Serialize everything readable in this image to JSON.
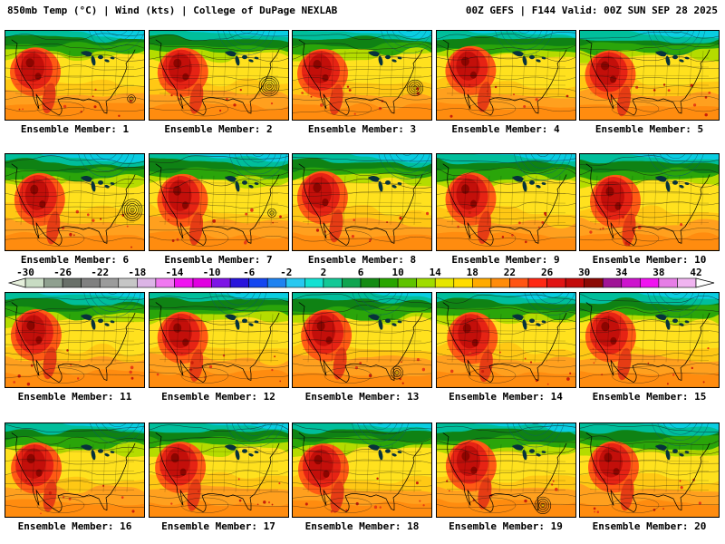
{
  "header": {
    "left": "850mb Temp (°C) | Wind (kts) | College of DuPage NEXLAB",
    "right": "00Z GEFS | F144 Valid: 00Z SUN SEP 28 2025"
  },
  "panels": [
    {
      "label": "Ensemble Member: 1"
    },
    {
      "label": "Ensemble Member: 2"
    },
    {
      "label": "Ensemble Member: 3"
    },
    {
      "label": "Ensemble Member: 4"
    },
    {
      "label": "Ensemble Member: 5"
    },
    {
      "label": "Ensemble Member: 6"
    },
    {
      "label": "Ensemble Member: 7"
    },
    {
      "label": "Ensemble Member: 8"
    },
    {
      "label": "Ensemble Member: 9"
    },
    {
      "label": "Ensemble Member: 10"
    },
    {
      "label": "Ensemble Member: 11"
    },
    {
      "label": "Ensemble Member: 12"
    },
    {
      "label": "Ensemble Member: 13"
    },
    {
      "label": "Ensemble Member: 14"
    },
    {
      "label": "Ensemble Member: 15"
    },
    {
      "label": "Ensemble Member: 16"
    },
    {
      "label": "Ensemble Member: 17"
    },
    {
      "label": "Ensemble Member: 18"
    },
    {
      "label": "Ensemble Member: 19"
    },
    {
      "label": "Ensemble Member: 20"
    }
  ],
  "colorbar": {
    "ticks": [
      "-30",
      "-26",
      "-22",
      "-18",
      "-14",
      "-10",
      "-6",
      "-2",
      "2",
      "6",
      "10",
      "14",
      "18",
      "22",
      "26",
      "30",
      "34",
      "38",
      "42"
    ],
    "segment_step_degC": 2,
    "range_degC": [
      -30,
      42
    ],
    "segment_colors": [
      "#C8DCC3",
      "#8FA08F",
      "#697069",
      "#808080",
      "#9B9B9B",
      "#C6C6C6",
      "#DCB4E6",
      "#F078F0",
      "#F014F0",
      "#E100E1",
      "#7D14E6",
      "#2814DC",
      "#1446F0",
      "#1E82F0",
      "#28C8F0",
      "#14E1D2",
      "#14C896",
      "#0FA550",
      "#148C14",
      "#28A500",
      "#5FC300",
      "#A0DC00",
      "#E6E600",
      "#FFDC00",
      "#FFAA00",
      "#FF8C0A",
      "#FF5514",
      "#FF2814",
      "#E11414",
      "#C30A0A",
      "#8C0A05",
      "#A01496",
      "#CD14CD",
      "#F014F0",
      "#E67DE6",
      "#F0B4F0"
    ],
    "left_arrow_color": "#E6F0DC",
    "right_arrow_color": "#FFFFFF"
  },
  "chart_data": {
    "type": "heatmap",
    "title": "850mb Temp (°C) | Wind (kts)",
    "source": "College of DuPage NEXLAB",
    "model_run": "00Z GEFS",
    "forecast_hour": "F144",
    "valid_time": "00Z SUN SEP 28 2025",
    "ensemble_members": [
      1,
      2,
      3,
      4,
      5,
      6,
      7,
      8,
      9,
      10,
      11,
      12,
      13,
      14,
      15,
      16,
      17,
      18,
      19,
      20
    ],
    "colorbar_ticks_degC": [
      -30,
      -26,
      -22,
      -18,
      -14,
      -10,
      -6,
      -2,
      2,
      6,
      10,
      14,
      18,
      22,
      26,
      30,
      34,
      38,
      42
    ],
    "legend_position": "middle-horizontal"
  }
}
